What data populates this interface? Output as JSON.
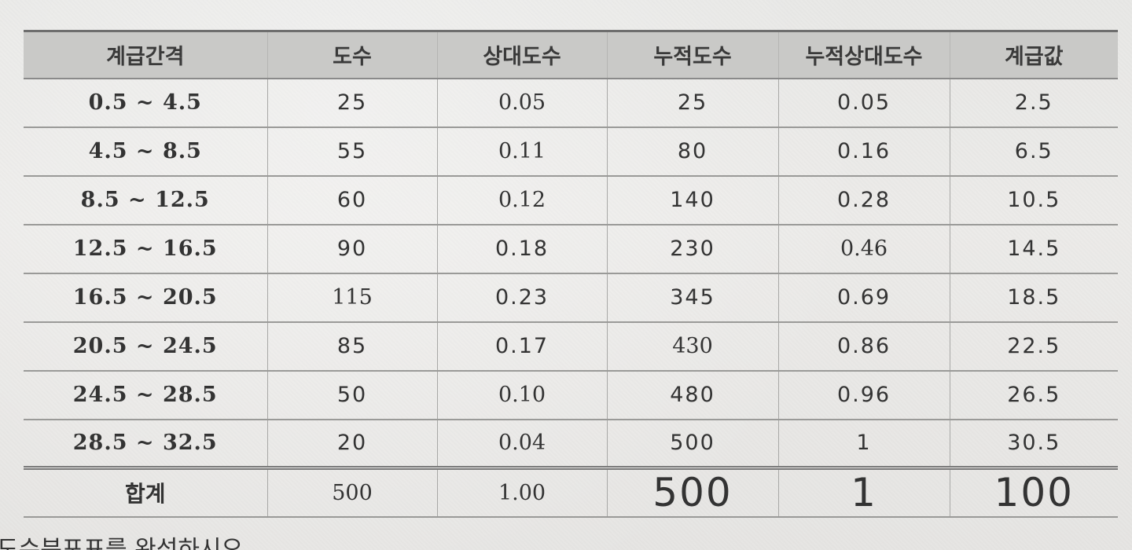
{
  "table": {
    "headers": [
      "계급간격",
      "도수",
      "상대도수",
      "누적도수",
      "누적상대도수",
      "계급값"
    ],
    "rows": [
      {
        "interval": "0.5 ~ 4.5",
        "freq": "25",
        "rel": "0.05",
        "cum": "25",
        "cumrel": "0.05",
        "mid": "2.5"
      },
      {
        "interval": "4.5 ~ 8.5",
        "freq": "55",
        "rel": "0.11",
        "cum": "80",
        "cumrel": "0.16",
        "mid": "6.5"
      },
      {
        "interval": "8.5 ~ 12.5",
        "freq": "60",
        "rel": "0.12",
        "cum": "140",
        "cumrel": "0.28",
        "mid": "10.5"
      },
      {
        "interval": "12.5 ~ 16.5",
        "freq": "90",
        "rel": "0.18",
        "cum": "230",
        "cumrel": "0.46",
        "mid": "14.5"
      },
      {
        "interval": "16.5 ~ 20.5",
        "freq": "115",
        "rel": "0.23",
        "cum": "345",
        "cumrel": "0.69",
        "mid": "18.5"
      },
      {
        "interval": "20.5 ~ 24.5",
        "freq": "85",
        "rel": "0.17",
        "cum": "430",
        "cumrel": "0.86",
        "mid": "22.5"
      },
      {
        "interval": "24.5 ~ 28.5",
        "freq": "50",
        "rel": "0.10",
        "cum": "480",
        "cumrel": "0.96",
        "mid": "26.5"
      },
      {
        "interval": "28.5 ~ 32.5",
        "freq": "20",
        "rel": "0.04",
        "cum": "500",
        "cumrel": "1",
        "mid": "30.5"
      }
    ],
    "total": {
      "label": "합계",
      "freq": "500",
      "rel": "1.00",
      "cum": "500",
      "cumrel": "1",
      "mid": "100"
    }
  },
  "footer_text": "도수분포표를 완성하시오",
  "colors": {
    "handwriting": "#1339b8",
    "header_bg": "#c9c9c7",
    "paper": "#eaeae8"
  }
}
